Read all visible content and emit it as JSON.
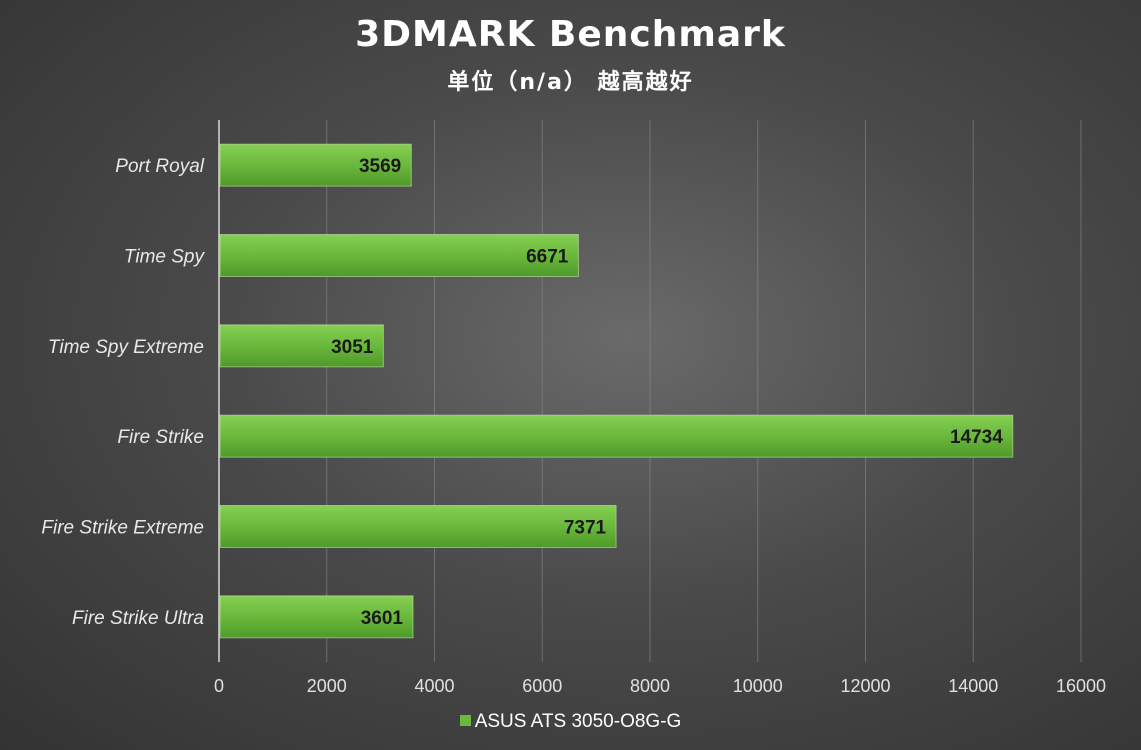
{
  "chart_data": {
    "type": "bar",
    "orientation": "horizontal",
    "title": "3DMARK Benchmark",
    "subtitle": "单位（n/a） 越高越好",
    "categories": [
      "Port Royal",
      "Time Spy",
      "Time Spy Extreme",
      "Fire Strike",
      "Fire Strike Extreme",
      "Fire Strike Ultra"
    ],
    "series": [
      {
        "name": "ASUS ATS 3050-O8G-G",
        "color": "#6ab83c",
        "values": [
          3569,
          6671,
          3051,
          14734,
          7371,
          3601
        ]
      }
    ],
    "xlim": [
      0,
      16000
    ],
    "xticks": [
      0,
      2000,
      4000,
      6000,
      8000,
      10000,
      12000,
      14000,
      16000
    ],
    "xlabel": "",
    "ylabel": "",
    "grid": true,
    "legend_position": "bottom-center"
  }
}
